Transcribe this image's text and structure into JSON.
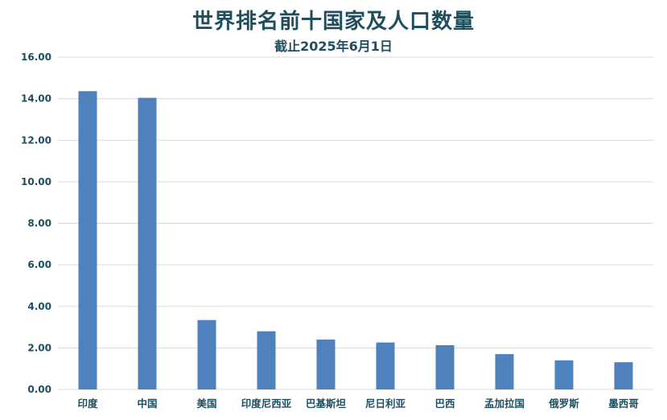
{
  "chart_data": {
    "type": "bar",
    "title": "世界排名前十国家及人口数量",
    "subtitle": "截止2025年6月1日",
    "categories": [
      "印度",
      "中国",
      "美国",
      "印度尼西亚",
      "巴基斯坦",
      "尼日利亚",
      "巴西",
      "孟加拉国",
      "俄罗斯",
      "墨西哥"
    ],
    "values": [
      14.36,
      14.04,
      3.34,
      2.8,
      2.4,
      2.26,
      2.13,
      1.7,
      1.4,
      1.31
    ],
    "ylim": [
      0,
      16
    ],
    "yticks": [
      "0.00",
      "2.00",
      "4.00",
      "6.00",
      "8.00",
      "10.00",
      "12.00",
      "14.00",
      "16.00"
    ],
    "grid": true,
    "legend": "none",
    "bar_color": "#4f81bd",
    "grid_color": "#d9d9d9",
    "text_color": "#1f4e5f"
  }
}
